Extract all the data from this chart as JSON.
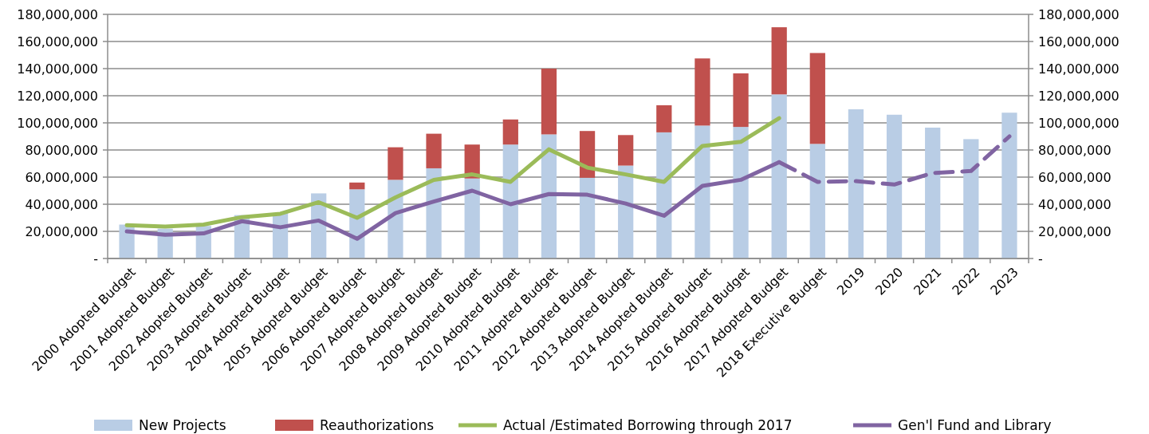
{
  "chart_data": {
    "type": "bar",
    "stacked": true,
    "categories": [
      "2000 Adopted Budget",
      "2001 Adopted Budget",
      "2002 Adopted Budget",
      "2003 Adopted Budget",
      "2004 Adopted Budget",
      "2005 Adopted Budget",
      "2006 Adopted Budget",
      "2007 Adopted Budget",
      "2008 Adopted Budget",
      "2009 Adopted Budget",
      "2010 Adopted Budget",
      "2011 Adopted Budget",
      "2012 Adopted Budget",
      "2013 Adopted Budget",
      "2014 Adopted Budget",
      "2015 Adopted Budget",
      "2016 Adopted Budget",
      "2017 Adopted Budget",
      "2018 Executive Budget",
      "2019",
      "2020",
      "2021",
      "2022",
      "2023"
    ],
    "series": [
      {
        "name": "New Projects",
        "color": "#b9cde5",
        "values": [
          25000000,
          22000000,
          24000000,
          32000000,
          33500000,
          48000000,
          51000000,
          58000000,
          66500000,
          59000000,
          84000000,
          91500000,
          59500000,
          68500000,
          93000000,
          98000000,
          97000000,
          121000000,
          84500000,
          110000000,
          106000000,
          96500000,
          88000000,
          107500000
        ]
      },
      {
        "name": "Reauthorizations",
        "color": "#c0504d",
        "values": [
          null,
          null,
          null,
          null,
          null,
          null,
          5000000,
          24000000,
          25500000,
          25000000,
          18500000,
          48500000,
          34500000,
          22500000,
          20000000,
          49500000,
          39500000,
          49500000,
          67000000,
          null,
          null,
          null,
          null,
          null
        ]
      },
      {
        "name": "Actual /Estimated Borrowing through 2017",
        "type": "line",
        "color": "#9bbb59",
        "line_style": "solid",
        "values": [
          24500000,
          23500000,
          25000000,
          30500000,
          33000000,
          41500000,
          30000000,
          45000000,
          58000000,
          62000000,
          56500000,
          80500000,
          67000000,
          62000000,
          56500000,
          83000000,
          86000000,
          103500000,
          null,
          null,
          null,
          null,
          null,
          null
        ]
      },
      {
        "name": "Gen'l Fund and Library",
        "type": "line",
        "color": "#8064a2",
        "line_style": "solid",
        "values": [
          20000000,
          17500000,
          18500000,
          27500000,
          23000000,
          28000000,
          14500000,
          33500000,
          42000000,
          50000000,
          40000000,
          47500000,
          47000000,
          40500000,
          31500000,
          53500000,
          58000000,
          71000000,
          null,
          null,
          null,
          null,
          null,
          null
        ]
      },
      {
        "type": "line",
        "color": "#8064a2",
        "line_style": "dashed",
        "values": [
          null,
          null,
          null,
          null,
          null,
          null,
          null,
          null,
          null,
          null,
          null,
          null,
          null,
          null,
          null,
          null,
          null,
          71000000,
          56500000,
          57000000,
          54500000,
          63000000,
          64500000,
          90000000
        ]
      }
    ],
    "ylim": [
      0,
      180000000
    ],
    "yticks": [
      {
        "value": 0,
        "label": "-"
      },
      {
        "value": 20000000,
        "label": "20,000,000"
      },
      {
        "value": 40000000,
        "label": "40,000,000"
      },
      {
        "value": 60000000,
        "label": "60,000,000"
      },
      {
        "value": 80000000,
        "label": "80,000,000"
      },
      {
        "value": 100000000,
        "label": "100,000,000"
      },
      {
        "value": 120000000,
        "label": "120,000,000"
      },
      {
        "value": 140000000,
        "label": "140,000,000"
      },
      {
        "value": 160000000,
        "label": "160,000,000"
      },
      {
        "value": 180000000,
        "label": "180,000,000"
      }
    ],
    "y2lim": [
      0,
      180000000
    ],
    "y2ticks": [
      {
        "value": 0,
        "label": "-"
      },
      {
        "value": 20000000,
        "label": "20,000,000"
      },
      {
        "value": 40000000,
        "label": "40,000,000"
      },
      {
        "value": 60000000,
        "label": "60,000,000"
      },
      {
        "value": 80000000,
        "label": "80,000,000"
      },
      {
        "value": 100000000,
        "label": "100,000,000"
      },
      {
        "value": 120000000,
        "label": "120,000,000"
      },
      {
        "value": 140000000,
        "label": "140,000,000"
      },
      {
        "value": 160000000,
        "label": "160,000,000"
      },
      {
        "value": 180000000,
        "label": "180,000,000"
      }
    ],
    "grid": "y",
    "legend": "bottom"
  }
}
